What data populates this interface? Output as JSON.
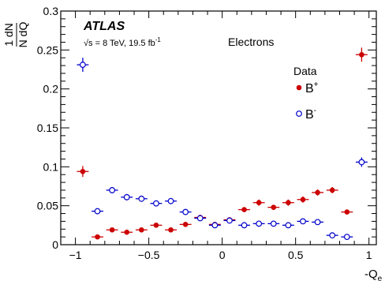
{
  "chart_data": {
    "type": "scatter",
    "experiment": "ATLAS",
    "energy_label": "√s = 8 TeV, 19.5 fb",
    "energy_sup": "-1",
    "channel": "Electrons",
    "ylabel": {
      "num": "1 dN",
      "den": "N dQ"
    },
    "xlabel": {
      "main": "-Q",
      "sub": "e"
    },
    "xlim": [
      -1.1,
      1.05
    ],
    "ylim": [
      0,
      0.3
    ],
    "xticks": [
      -1,
      -0.5,
      0,
      0.5,
      1
    ],
    "xtick_labels": [
      "−1",
      "−0.5",
      "0",
      "0.5",
      "1"
    ],
    "yticks": [
      0,
      0.05,
      0.1,
      0.15,
      0.2,
      0.25,
      0.3
    ],
    "ytick_labels": [
      "0",
      "0.05",
      "0.1",
      "0.15",
      "0.2",
      "0.25",
      "0.3"
    ],
    "bin_half_width": 0.04,
    "legend": {
      "title": "Data",
      "placement": "top-right"
    },
    "series": [
      {
        "name": "B",
        "sup": "+",
        "color": "#cc0000",
        "marker": "filled-circle",
        "x": [
          -0.95,
          -0.85,
          -0.75,
          -0.65,
          -0.55,
          -0.45,
          -0.35,
          -0.25,
          -0.15,
          -0.05,
          0.05,
          0.15,
          0.25,
          0.35,
          0.45,
          0.55,
          0.65,
          0.75,
          0.85,
          0.95
        ],
        "y": [
          0.094,
          0.01,
          0.019,
          0.016,
          0.019,
          0.025,
          0.019,
          0.026,
          0.035,
          0.026,
          0.032,
          0.045,
          0.054,
          0.048,
          0.054,
          0.058,
          0.067,
          0.07,
          0.042,
          0.244
        ],
        "err": [
          0.007,
          0.002,
          0.002,
          0.002,
          0.002,
          0.003,
          0.002,
          0.003,
          0.003,
          0.003,
          0.003,
          0.003,
          0.004,
          0.003,
          0.004,
          0.004,
          0.004,
          0.004,
          0.003,
          0.009
        ]
      },
      {
        "name": "B",
        "sup": "-",
        "color": "#0000cc",
        "marker": "open-circle",
        "x": [
          -0.95,
          -0.85,
          -0.75,
          -0.65,
          -0.55,
          -0.45,
          -0.35,
          -0.25,
          -0.15,
          -0.05,
          0.05,
          0.15,
          0.25,
          0.35,
          0.45,
          0.55,
          0.65,
          0.75,
          0.85,
          0.95
        ],
        "y": [
          0.231,
          0.043,
          0.07,
          0.061,
          0.059,
          0.053,
          0.056,
          0.042,
          0.034,
          0.025,
          0.031,
          0.025,
          0.027,
          0.027,
          0.025,
          0.03,
          0.029,
          0.012,
          0.01,
          0.106
        ],
        "err": [
          0.009,
          0.003,
          0.004,
          0.004,
          0.004,
          0.003,
          0.004,
          0.003,
          0.003,
          0.003,
          0.003,
          0.003,
          0.003,
          0.003,
          0.003,
          0.003,
          0.003,
          0.002,
          0.002,
          0.006
        ]
      }
    ]
  }
}
